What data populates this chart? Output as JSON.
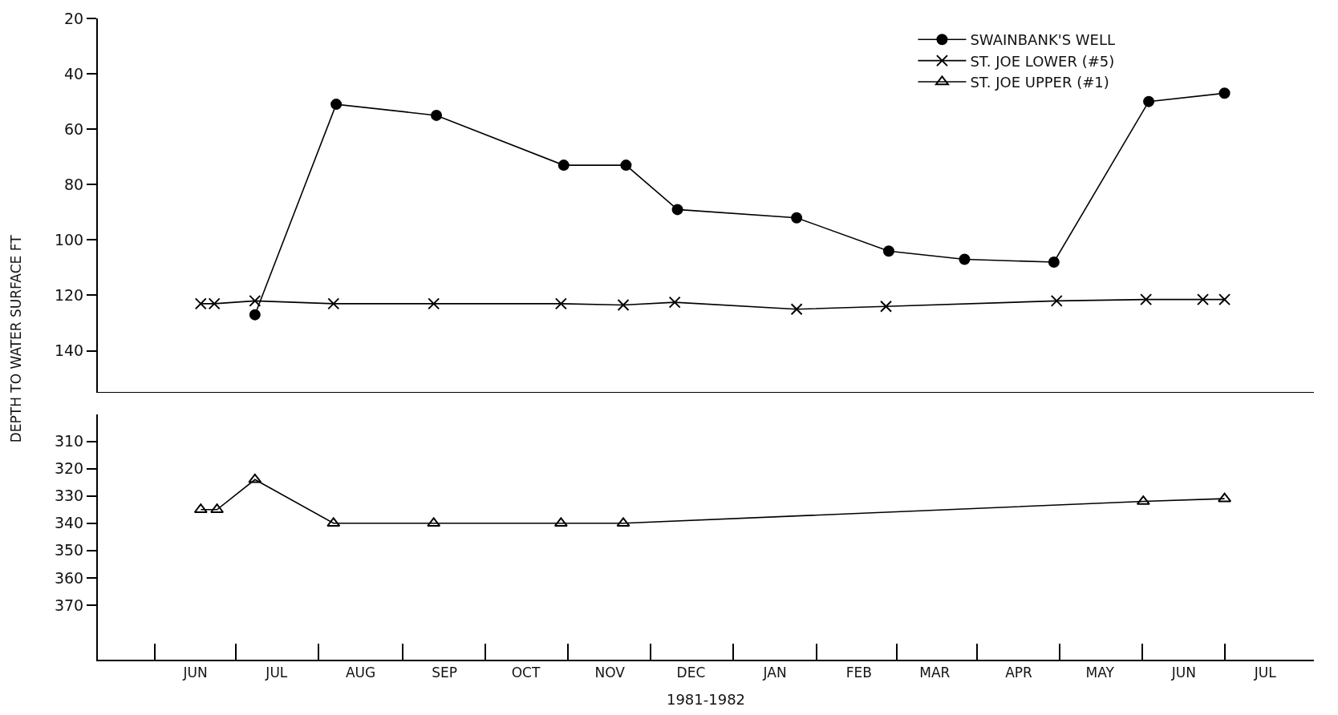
{
  "chart_data": [
    {
      "type": "line",
      "ylabel": "DEPTH TO WATER SURFACE FT",
      "xlim": [
        "1981-05-10",
        "1982-08-02"
      ],
      "ylim": [
        155,
        20
      ],
      "yticks": [
        20,
        40,
        60,
        80,
        100,
        120,
        140
      ],
      "tick_labels": "y",
      "legend": "top right",
      "line_style": "solid",
      "series": [
        {
          "name": "SWAINBANK'S WELL",
          "color": "#000000",
          "marker": "circle",
          "x": [
            "1981-07-07",
            "1981-08-06",
            "1981-09-12",
            "1981-10-29",
            "1981-11-21",
            "1981-12-10",
            "1982-01-23",
            "1982-02-26",
            "1982-03-26",
            "1982-04-28",
            "1982-06-02",
            "1982-06-30"
          ],
          "values": [
            127,
            51,
            55,
            73,
            73,
            89,
            92,
            104,
            107,
            108,
            50,
            47
          ]
        },
        {
          "name": "ST. JOE LOWER (#5)",
          "color": "#000000",
          "marker": "cross",
          "x": [
            "1981-06-17",
            "1981-06-22",
            "1981-07-07",
            "1981-08-05",
            "1981-09-11",
            "1981-10-28",
            "1981-11-20",
            "1981-12-09",
            "1982-01-23",
            "1982-02-25",
            "1982-04-29",
            "1982-06-01",
            "1982-06-22",
            "1982-06-30"
          ],
          "values": [
            123,
            123,
            122,
            123,
            123,
            123,
            123.5,
            122.5,
            125,
            124,
            122,
            121.5,
            121.5,
            121.5
          ]
        }
      ]
    },
    {
      "type": "line",
      "xlabel": "1981-1982",
      "xlim": [
        "1981-05-10",
        "1982-08-02"
      ],
      "ylim": [
        390,
        300
      ],
      "yticks": [
        310,
        320,
        330,
        340,
        350,
        360,
        370
      ],
      "line_style": "solid",
      "xticks": [
        {
          "value": "1981-06-15",
          "label": "JUN"
        },
        {
          "value": "1981-07-15",
          "label": "JUL"
        },
        {
          "value": "1981-08-15",
          "label": "AUG"
        },
        {
          "value": "1981-09-15",
          "label": "SEP"
        },
        {
          "value": "1981-10-15",
          "label": "OCT"
        },
        {
          "value": "1981-11-15",
          "label": "NOV"
        },
        {
          "value": "1981-12-15",
          "label": "DEC"
        },
        {
          "value": "1982-01-15",
          "label": "JAN"
        },
        {
          "value": "1982-02-15",
          "label": "FEB"
        },
        {
          "value": "1982-03-15",
          "label": "MAR"
        },
        {
          "value": "1982-04-15",
          "label": "APR"
        },
        {
          "value": "1982-05-15",
          "label": "MAY"
        },
        {
          "value": "1982-06-15",
          "label": "JUN"
        },
        {
          "value": "1982-07-15",
          "label": "JUL"
        }
      ],
      "series": [
        {
          "name": "ST. JOE UPPER (#1)",
          "color": "#000000",
          "marker": "triangle",
          "x": [
            "1981-06-17",
            "1981-06-23",
            "1981-07-07",
            "1981-08-05",
            "1981-09-11",
            "1981-10-28",
            "1981-11-20",
            "1982-05-31",
            "1982-06-30"
          ],
          "values": [
            335,
            335,
            324,
            340,
            340,
            340,
            340,
            332,
            331
          ]
        }
      ]
    }
  ]
}
